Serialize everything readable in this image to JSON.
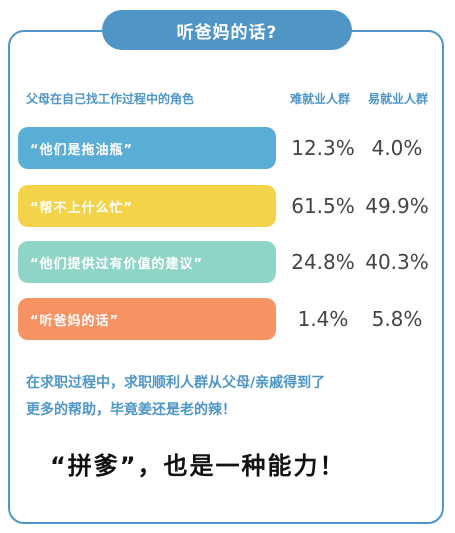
{
  "title": "听爸妈的话?",
  "chart_data": {
    "type": "table",
    "header_left": "父母在自己找工作过程中的角色",
    "columns": [
      "难就业人群",
      "易就业人群"
    ],
    "rows": [
      {
        "label": "“他们是拖油瓶”",
        "color": "#5aaed6",
        "values": [
          "12.3%",
          "4.0%"
        ]
      },
      {
        "label": "“帮不上什么忙”",
        "color": "#f3d34a",
        "values": [
          "61.5%",
          "49.9%"
        ]
      },
      {
        "label": "“他们提供过有价值的建议”",
        "color": "#8fd5c7",
        "values": [
          "24.8%",
          "40.3%"
        ]
      },
      {
        "label": "“听爸妈的话”",
        "color": "#f79263",
        "values": [
          "1.4%",
          "5.8%"
        ]
      }
    ]
  },
  "note_line1": "在求职过程中，求职顺利人群从父母/亲戚得到了",
  "note_line2": "更多的帮助，毕竟姜还是老的辣！",
  "slogan": "“拼爹”，也是一种能力！"
}
